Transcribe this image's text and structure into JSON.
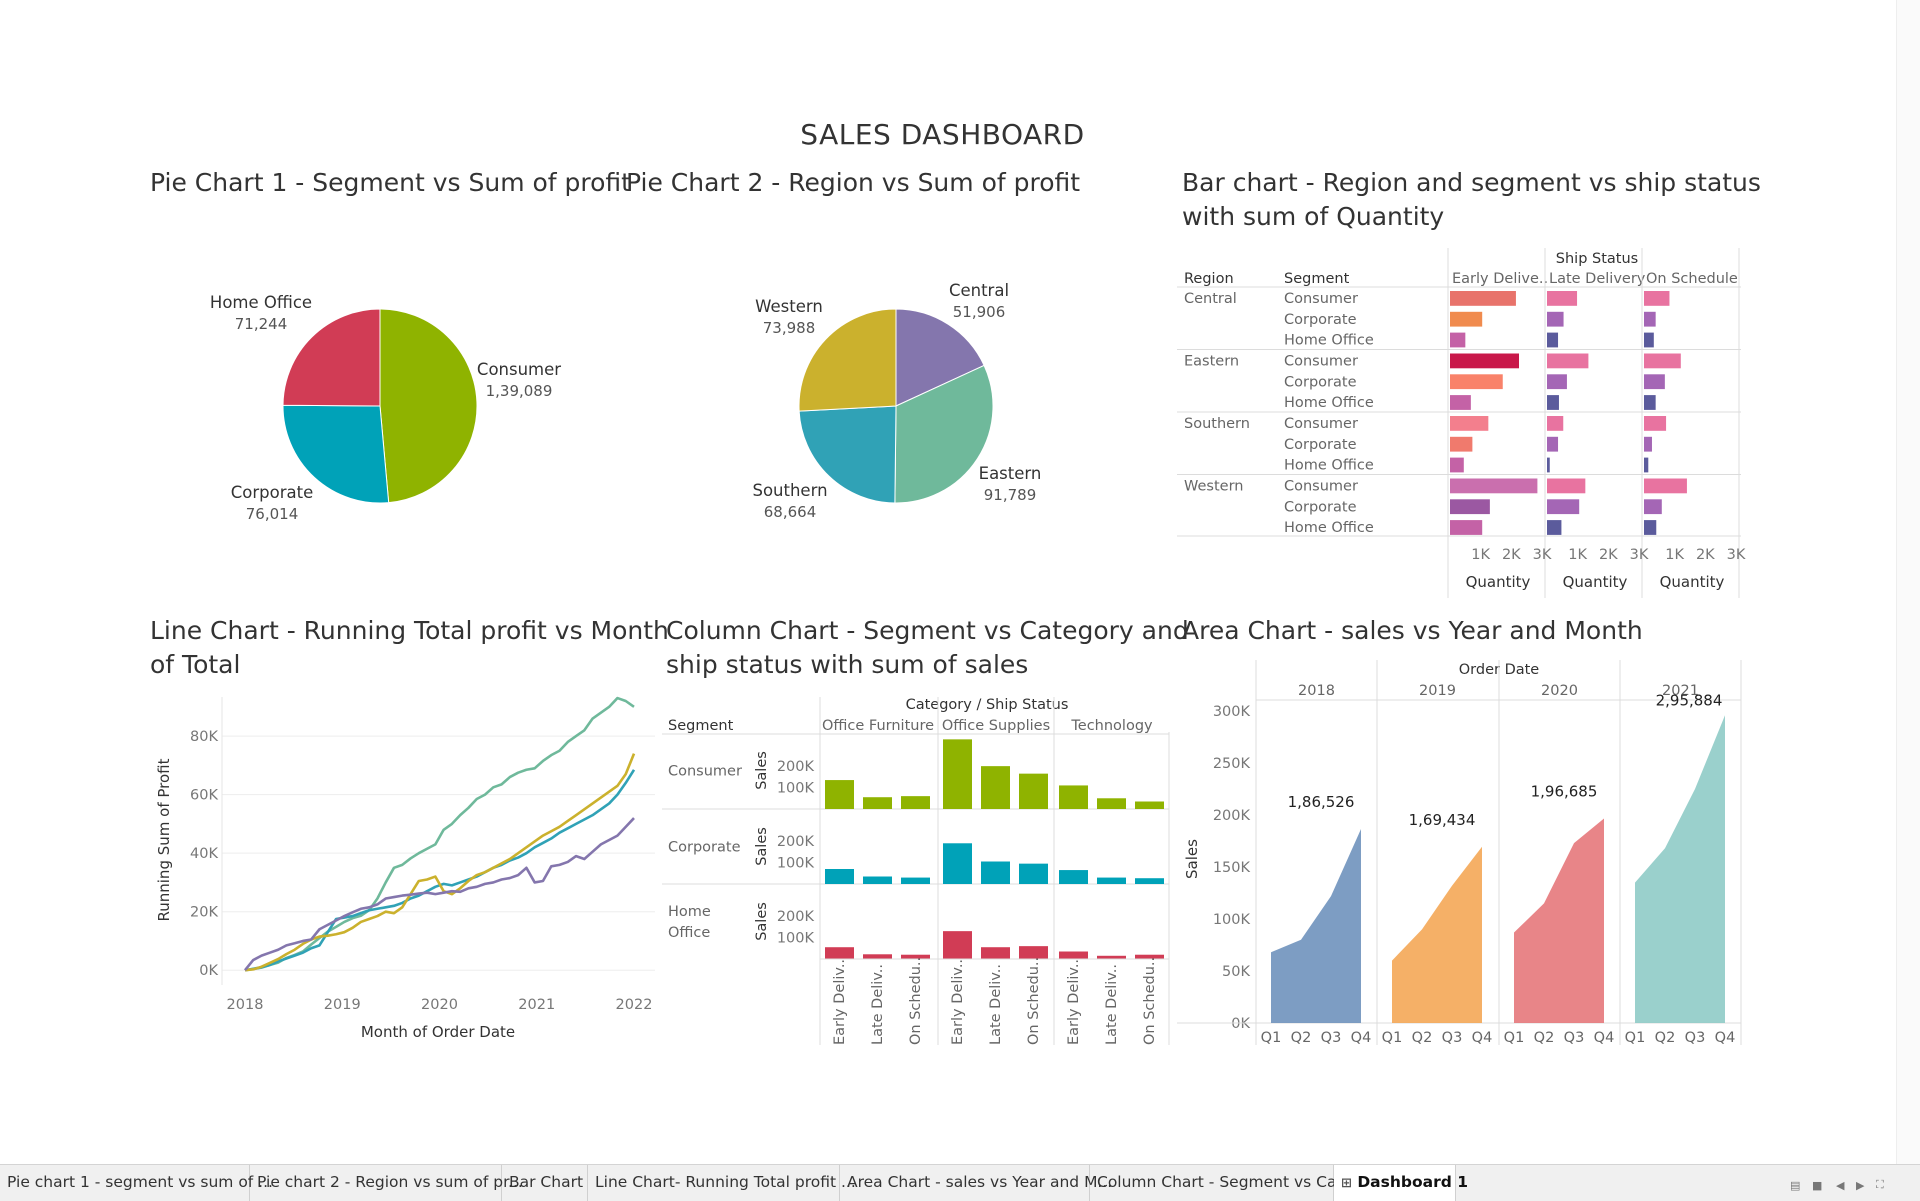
{
  "dashboard": {
    "title": "SALES DASHBOARD"
  },
  "titles": {
    "pie1": "Pie Chart 1 - Segment vs Sum of profit",
    "pie2": "Pie Chart 2 - Region vs Sum of profit",
    "bar_l1": "Bar chart - Region and segment vs ship status",
    "bar_l2": "with sum of Quantity",
    "line_l1": "Line Chart - Running Total profit vs Month",
    "line_l2": "of Total",
    "col_l1": "Column Chart - Segment vs Category and",
    "col_l2": "ship status with sum of sales",
    "area": "Area Chart - sales vs Year and Month"
  },
  "colors": {
    "consumer": "#8fb300",
    "corporate": "#00a2b8",
    "home_office": "#d13c55",
    "central": "#8476ad",
    "eastern": "#6fb99b",
    "southern": "#30a2b6",
    "western": "#cbb12d",
    "area_2018": "#6b90bb",
    "area_2019": "#f4a552",
    "area_2020": "#e57478",
    "area_2021": "#8ccac5"
  },
  "tabs": [
    {
      "label": "Pie chart 1 - segment vs sum of ..."
    },
    {
      "label": "Pie chart 2 - Region vs sum of pr..."
    },
    {
      "label": "Bar Chart"
    },
    {
      "label": "Line Chart- Running Total profit ..."
    },
    {
      "label": "Area Chart - sales vs Year and M..."
    },
    {
      "label": "Column Chart - Segment vs Cat..."
    },
    {
      "label": "Dashboard 1",
      "active": true
    }
  ],
  "chart_data": [
    {
      "type": "pie",
      "title": "Pie Chart 1 - Segment vs Sum of profit",
      "labels": [
        "Consumer",
        "Corporate",
        "Home Office"
      ],
      "values": [
        139089,
        76014,
        71244
      ],
      "value_labels": [
        "1,39,089",
        "76,014",
        "71,244"
      ]
    },
    {
      "type": "pie",
      "title": "Pie Chart 2 - Region vs Sum of profit",
      "labels": [
        "Central",
        "Eastern",
        "Southern",
        "Western"
      ],
      "values": [
        51906,
        91789,
        68664,
        73988
      ],
      "value_labels": [
        "51,906",
        "91,789",
        "68,664",
        "73,988"
      ]
    },
    {
      "type": "bar",
      "title": "Bar chart - Region and segment vs ship status with sum of Quantity",
      "row_headers": [
        "Region",
        "Segment"
      ],
      "column_header": "Ship Status",
      "columns": [
        "Early Delive..",
        "Late Delivery",
        "On Schedule"
      ],
      "regions": [
        "Central",
        "Eastern",
        "Southern",
        "Western"
      ],
      "segments": [
        "Consumer",
        "Corporate",
        "Home Office"
      ],
      "values": [
        [
          [
            2150,
            980,
            830
          ],
          [
            1050,
            540,
            380
          ],
          [
            500,
            360,
            320
          ]
        ],
        [
          [
            2250,
            1350,
            1200
          ],
          [
            1720,
            650,
            680
          ],
          [
            680,
            390,
            380
          ]
        ],
        [
          [
            1250,
            530,
            720
          ],
          [
            730,
            360,
            260
          ],
          [
            450,
            90,
            140
          ]
        ],
        [
          [
            2850,
            1250,
            1400
          ],
          [
            1300,
            1050,
            580
          ],
          [
            1050,
            470,
            400
          ]
        ]
      ],
      "xlabel": "Quantity",
      "xticks": [
        "1K",
        "2K",
        "3K"
      ],
      "xlim": [
        0,
        3000
      ]
    },
    {
      "type": "line",
      "title": "Line Chart - Running Total profit vs Month of Total",
      "xlabel": "Month of Order Date",
      "ylabel": "Running Sum of Profit",
      "xticks": [
        "2018",
        "2019",
        "2020",
        "2021",
        "2022"
      ],
      "yticks": [
        "0K",
        "20K",
        "40K",
        "60K",
        "80K"
      ],
      "x_range": [
        "2018-01",
        "2021-12"
      ],
      "ylim": [
        -3000,
        92000
      ],
      "series": [
        {
          "color": "#6fb99b",
          "values": [
            0,
            400,
            900,
            1800,
            2600,
            4200,
            5200,
            6400,
            8800,
            11000,
            13200,
            14800,
            16500,
            17800,
            18600,
            20500,
            24500,
            30000,
            35000,
            36000,
            38200,
            40000,
            41500,
            43000,
            48000,
            50000,
            53000,
            55500,
            58500,
            60000,
            62500,
            63500,
            66000,
            67500,
            68500,
            69000,
            71500,
            73500,
            75000,
            78000,
            80000,
            82000,
            86000,
            88000,
            90000,
            93000,
            92000,
            90000
          ]
        },
        {
          "color": "#30a2b6",
          "values": [
            0,
            500,
            1000,
            1800,
            3000,
            4000,
            5000,
            6000,
            7500,
            8500,
            13000,
            17500,
            18000,
            18500,
            19500,
            20500,
            21000,
            21500,
            22000,
            23000,
            24500,
            25500,
            27000,
            28500,
            29500,
            29000,
            30000,
            31000,
            32000,
            33500,
            35000,
            36000,
            37500,
            38500,
            40000,
            42000,
            43500,
            45000,
            47000,
            48500,
            50000,
            51500,
            53000,
            55000,
            57000,
            60000,
            64000,
            68500
          ]
        },
        {
          "color": "#cbb12d",
          "values": [
            0,
            300,
            1200,
            2500,
            3800,
            5500,
            7000,
            9000,
            10500,
            11500,
            11800,
            12300,
            13000,
            14500,
            16500,
            17500,
            18500,
            20000,
            19500,
            21500,
            26000,
            30500,
            31000,
            32000,
            27000,
            26000,
            28000,
            30500,
            32500,
            33500,
            35000,
            36500,
            38000,
            40000,
            42000,
            44000,
            46000,
            47500,
            49000,
            51000,
            53000,
            55000,
            57000,
            59000,
            61000,
            63000,
            67000,
            74000
          ]
        },
        {
          "color": "#8476ad",
          "values": [
            0,
            3500,
            5000,
            6000,
            7000,
            8500,
            9200,
            10000,
            10500,
            14000,
            15500,
            17000,
            18500,
            19800,
            21000,
            21500,
            22500,
            24500,
            25000,
            25500,
            25800,
            26200,
            26500,
            26000,
            26500,
            27000,
            26800,
            28000,
            28500,
            29500,
            30000,
            31000,
            31500,
            32500,
            35000,
            30000,
            30500,
            35500,
            36000,
            37000,
            39000,
            38000,
            40500,
            43000,
            44500,
            46000,
            49000,
            52000
          ]
        }
      ]
    },
    {
      "type": "bar",
      "title": "Column Chart - Segment vs Category and ship status with sum of sales",
      "row_header": "Segment",
      "column_header": "Category / Ship Status",
      "categories": [
        "Office Furniture",
        "Office Supplies",
        "Technology"
      ],
      "ship_status": [
        "Early Deliv..",
        "Late Deliv..",
        "On Schedu.."
      ],
      "segments": [
        "Consumer",
        "Corporate",
        "Home\nOffice"
      ],
      "ylabel": "Sales",
      "yticks": [
        "100K",
        "200K"
      ],
      "ylim": [
        0,
        350000
      ],
      "values": [
        [
          [
            135000,
            55000,
            60000
          ],
          [
            325000,
            200000,
            165000
          ],
          [
            110000,
            50000,
            35000
          ]
        ],
        [
          [
            70000,
            35000,
            30000
          ],
          [
            190000,
            105000,
            95000
          ],
          [
            65000,
            30000,
            27000
          ]
        ],
        [
          [
            55000,
            22000,
            20000
          ],
          [
            130000,
            55000,
            60000
          ],
          [
            35000,
            15000,
            20000
          ]
        ]
      ]
    },
    {
      "type": "area",
      "title": "Area Chart - sales vs Year and Month",
      "column_header": "Order Date",
      "years": [
        "2018",
        "2019",
        "2020",
        "2021"
      ],
      "quarters": [
        "Q1",
        "Q2",
        "Q3",
        "Q4"
      ],
      "ylabel": "Sales",
      "yticks": [
        "0K",
        "50K",
        "100K",
        "150K",
        "200K",
        "250K",
        "300K"
      ],
      "ylim": [
        0,
        300000
      ],
      "series": [
        {
          "name": "2018",
          "values": [
            68000,
            80000,
            122000,
            186526
          ],
          "label": "1,86,526"
        },
        {
          "name": "2019",
          "values": [
            60000,
            90000,
            132000,
            169434
          ],
          "label": "1,69,434"
        },
        {
          "name": "2020",
          "values": [
            87000,
            115000,
            173000,
            196685
          ],
          "label": "1,96,685"
        },
        {
          "name": "2021",
          "values": [
            135000,
            168000,
            225000,
            295884
          ],
          "label": "2,95,884"
        }
      ]
    }
  ]
}
